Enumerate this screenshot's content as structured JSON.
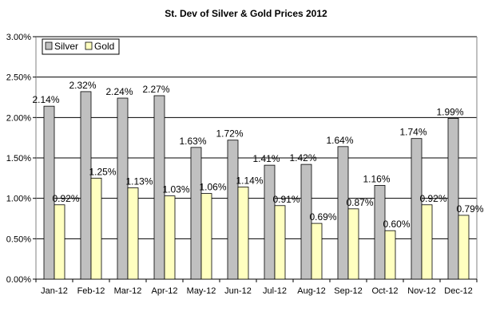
{
  "chart_data": {
    "type": "bar",
    "title": "St. Dev of Silver & Gold Prices  2012",
    "xlabel": "",
    "ylabel": "",
    "categories": [
      "Jan-12",
      "Feb-12",
      "Mar-12",
      "Apr-12",
      "May-12",
      "Jun-12",
      "Jul-12",
      "Aug-12",
      "Sep-12",
      "Oct-12",
      "Nov-12",
      "Dec-12"
    ],
    "series": [
      {
        "name": "Silver",
        "color": "#c0c0c0",
        "values": [
          2.14,
          2.32,
          2.24,
          2.27,
          1.63,
          1.72,
          1.41,
          1.42,
          1.64,
          1.16,
          1.74,
          1.99
        ],
        "labels": [
          "2.14%",
          "2.32%",
          "2.24%",
          "2.27%",
          "1.63%",
          "1.72%",
          "1.41%",
          "1.42%",
          "1.64%",
          "1.16%",
          "1.74%",
          "1.99%"
        ]
      },
      {
        "name": "Gold",
        "color": "#ffffc0",
        "values": [
          0.92,
          1.25,
          1.13,
          1.03,
          1.06,
          1.14,
          0.91,
          0.69,
          0.87,
          0.6,
          0.92,
          0.79
        ],
        "labels": [
          "0.92%",
          "1.25%",
          "1.13%",
          "1.03%",
          "1.06%",
          "1.14%",
          "0.91%",
          "0.69%",
          "0.87%",
          "0.60%",
          "0.92%",
          "0.79%"
        ]
      }
    ],
    "yticks": [
      0,
      0.5,
      1.0,
      1.5,
      2.0,
      2.5,
      3.0
    ],
    "ytick_labels": [
      "0.00%",
      "0.50%",
      "1.00%",
      "1.50%",
      "2.00%",
      "2.50%",
      "3.00%"
    ],
    "ylim": [
      0,
      3.0
    ],
    "grid": true,
    "legend_position": "top-left"
  }
}
